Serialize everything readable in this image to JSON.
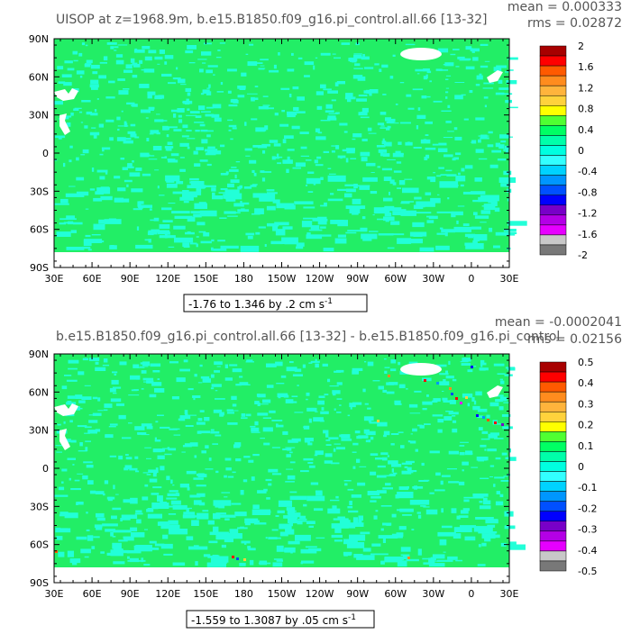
{
  "chart_data": [
    {
      "type": "heatmap",
      "title": "UISOP at z=1968.9m, b.e15.B1850.f09_g16.pi_control.all.66 [13-32]",
      "stats": {
        "mean": "mean = 0.000333",
        "rms": "rms = 0.02872"
      },
      "range_label": "-1.76 to 1.346 by .2 cm s",
      "range_exponent": "-1",
      "x_ticks": [
        "30E",
        "60E",
        "90E",
        "120E",
        "150E",
        "180",
        "150W",
        "120W",
        "90W",
        "60W",
        "30W",
        "0",
        "30E"
      ],
      "y_ticks": [
        "90N",
        "60N",
        "30N",
        "0",
        "30S",
        "60S",
        "90S"
      ],
      "colorbar_levels": [
        "2",
        "1.6",
        "1.2",
        "0.8",
        "0.4",
        "0",
        "-0.4",
        "-0.8",
        "-1.2",
        "-1.6",
        "-2"
      ],
      "colorbar_colors": [
        "#a80000",
        "#ff0000",
        "#ff5a00",
        "#ff8c1e",
        "#ffb43c",
        "#ffd23c",
        "#ffff00",
        "#50ff32",
        "#00ff64",
        "#00ffaa",
        "#00ffe0",
        "#32ffff",
        "#00d2ff",
        "#0096ff",
        "#0050ff",
        "#0000ff",
        "#7800c8",
        "#b400e6",
        "#e600ff",
        "#c8c8c8",
        "#787878"
      ],
      "dominant_color": "#22ee66",
      "anomaly_color": "#22ffd8"
    },
    {
      "type": "heatmap",
      "title": "b.e15.B1850.f09_g16.pi_control.all.66 [13-32] - b.e15.B1850.f09_g16.pi_control",
      "stats": {
        "mean": "mean = -0.0002041",
        "rms": "rms = 0.02156"
      },
      "range_label": "-1.559 to 1.3087 by .05 cm s",
      "range_exponent": "-1",
      "x_ticks": [
        "30E",
        "60E",
        "90E",
        "120E",
        "150E",
        "180",
        "150W",
        "120W",
        "90W",
        "60W",
        "30W",
        "0",
        "30E"
      ],
      "y_ticks": [
        "90N",
        "60N",
        "30N",
        "0",
        "30S",
        "60S",
        "90S"
      ],
      "colorbar_levels": [
        "0.5",
        "0.4",
        "0.3",
        "0.2",
        "0.1",
        "0",
        "-0.1",
        "-0.2",
        "-0.3",
        "-0.4",
        "-0.5"
      ],
      "colorbar_colors": [
        "#a80000",
        "#ff0000",
        "#ff5a00",
        "#ff8c1e",
        "#ffb43c",
        "#ffd23c",
        "#ffff00",
        "#50ff32",
        "#00ff64",
        "#00ffaa",
        "#00ffe0",
        "#32ffff",
        "#00d2ff",
        "#0096ff",
        "#0050ff",
        "#0000ff",
        "#7800c8",
        "#b400e6",
        "#e600ff",
        "#c8c8c8",
        "#787878"
      ],
      "dominant_color": "#22ee66",
      "anomaly_color": "#22ffd8"
    }
  ]
}
